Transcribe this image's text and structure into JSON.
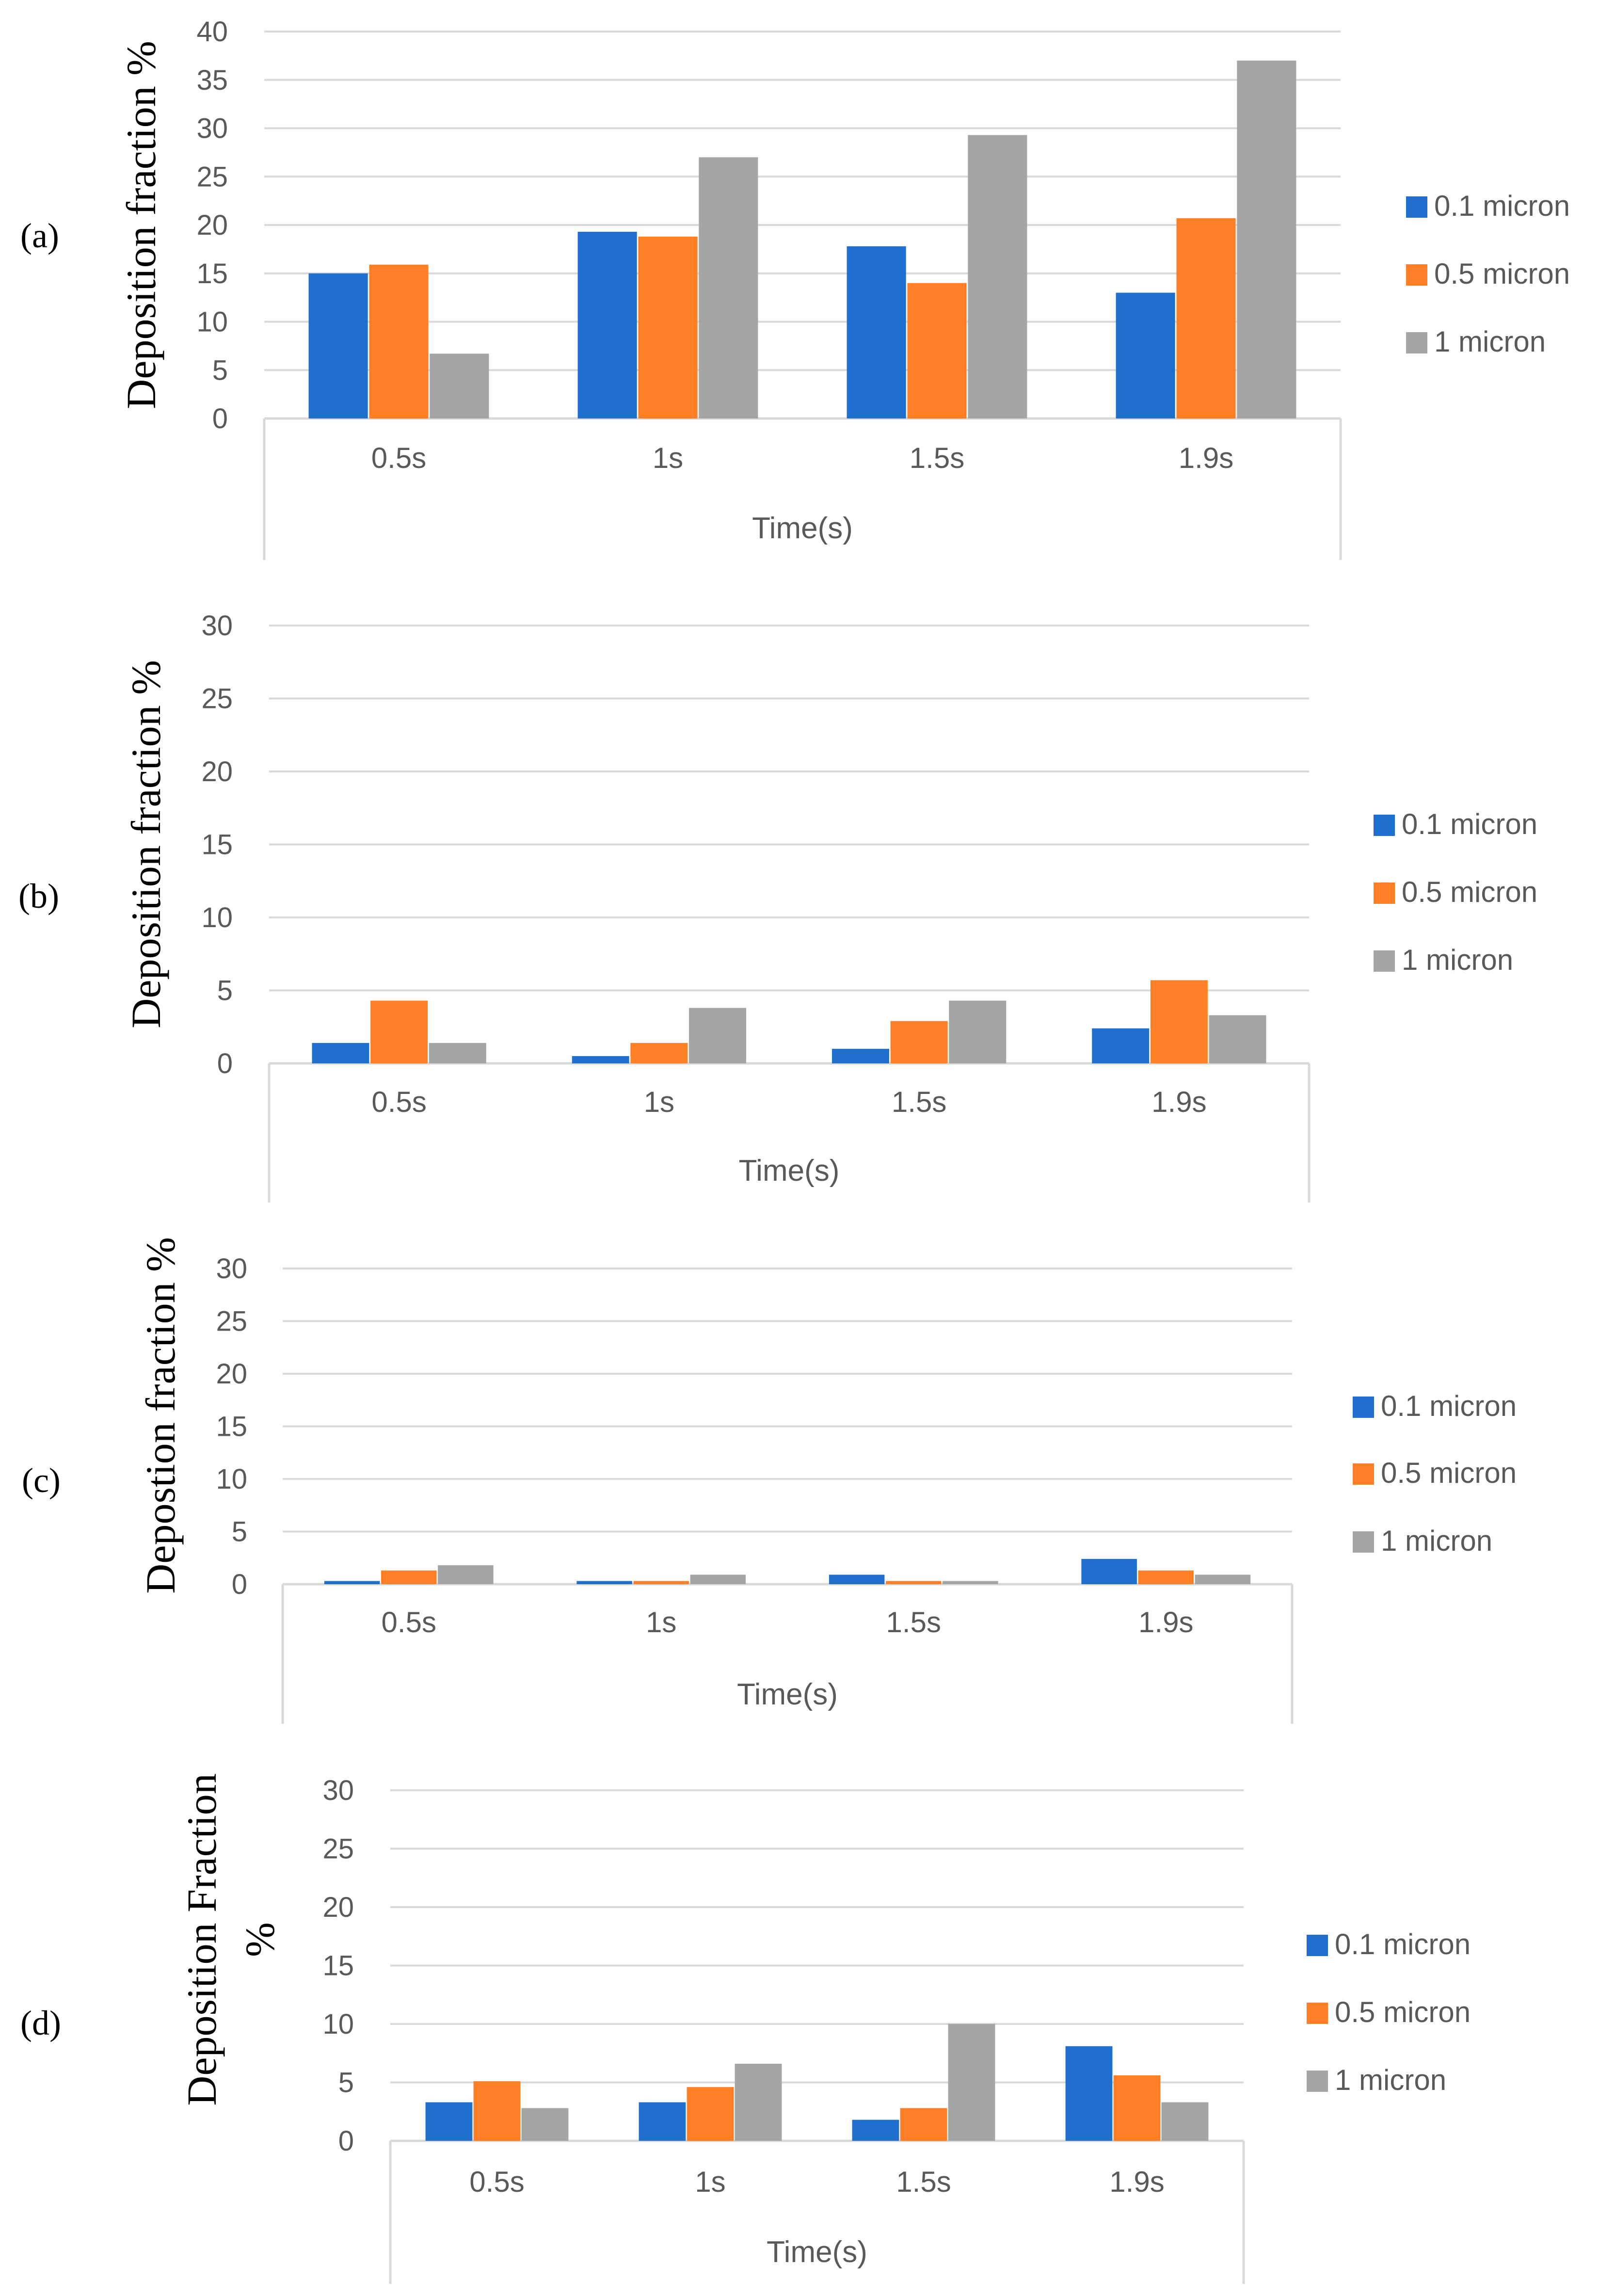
{
  "chart_data": [
    {
      "type": "bar",
      "panel_label": "(a)",
      "title": "",
      "xlabel": "Time(s)",
      "ylabel": "Deposition fraction %",
      "ylim": [
        0,
        40
      ],
      "yticks": [
        "0",
        "5",
        "10",
        "15",
        "20",
        "25",
        "30",
        "35",
        "40"
      ],
      "categories": [
        "0.5s",
        "1s",
        "1.5s",
        "1.9s"
      ],
      "series": [
        {
          "name": "0.1 micron",
          "color": "#1f6fcf",
          "values": [
            15,
            19.3,
            17.8,
            13
          ]
        },
        {
          "name": "0.5 micron",
          "color": "#ff7f27",
          "values": [
            15.9,
            18.8,
            14,
            20.7
          ]
        },
        {
          "name": "1 micron",
          "color": "#a5a5a5",
          "values": [
            6.7,
            27,
            29.3,
            37
          ]
        }
      ],
      "grid": true,
      "legend": "right"
    },
    {
      "type": "bar",
      "panel_label": "(b)",
      "title": "",
      "xlabel": "Time(s)",
      "ylabel": "Deposition fraction %",
      "ylim": [
        0,
        30
      ],
      "yticks": [
        "0",
        "5",
        "10",
        "15",
        "20",
        "25",
        "30"
      ],
      "categories": [
        "0.5s",
        "1s",
        "1.5s",
        "1.9s"
      ],
      "series": [
        {
          "name": "0.1 micron",
          "color": "#1f6fcf",
          "values": [
            1.4,
            0.5,
            1,
            2.4
          ]
        },
        {
          "name": "0.5 micron",
          "color": "#ff7f27",
          "values": [
            4.3,
            1.4,
            2.9,
            5.7
          ]
        },
        {
          "name": "1 micron",
          "color": "#a5a5a5",
          "values": [
            1.4,
            3.8,
            4.3,
            3.3
          ]
        }
      ],
      "grid": true,
      "legend": "right"
    },
    {
      "type": "bar",
      "panel_label": "(c)",
      "title": "",
      "xlabel": "Time(s)",
      "ylabel": "Depostion fraction %",
      "ylim": [
        0,
        30
      ],
      "yticks": [
        "0",
        "5",
        "10",
        "15",
        "20",
        "25",
        "30"
      ],
      "categories": [
        "0.5s",
        "1s",
        "1.5s",
        "1.9s"
      ],
      "series": [
        {
          "name": "0.1 micron",
          "color": "#1f6fcf",
          "values": [
            0.3,
            0.3,
            0.9,
            2.4
          ]
        },
        {
          "name": "0.5 micron",
          "color": "#ff7f27",
          "values": [
            1.3,
            0.3,
            0.3,
            1.3
          ]
        },
        {
          "name": "1 micron",
          "color": "#a5a5a5",
          "values": [
            1.8,
            0.9,
            0.3,
            0.9
          ]
        }
      ],
      "grid": true,
      "legend": "right"
    },
    {
      "type": "bar",
      "panel_label": "(d)",
      "title": "",
      "xlabel": "Time(s)",
      "ylabel": "Deposition Fraction %",
      "ylim": [
        0,
        30
      ],
      "yticks": [
        "0",
        "5",
        "10",
        "15",
        "20",
        "25",
        "30"
      ],
      "categories": [
        "0.5s",
        "1s",
        "1.5s",
        "1.9s"
      ],
      "series": [
        {
          "name": "0.1 micron",
          "color": "#1f6fcf",
          "values": [
            3.3,
            3.3,
            1.8,
            8.1
          ]
        },
        {
          "name": "0.5 micron",
          "color": "#ff7f27",
          "values": [
            5.1,
            4.6,
            2.8,
            5.6
          ]
        },
        {
          "name": "1 micron",
          "color": "#a5a5a5",
          "values": [
            2.8,
            6.6,
            10,
            3.3
          ]
        }
      ],
      "grid": true,
      "legend": "right"
    }
  ]
}
